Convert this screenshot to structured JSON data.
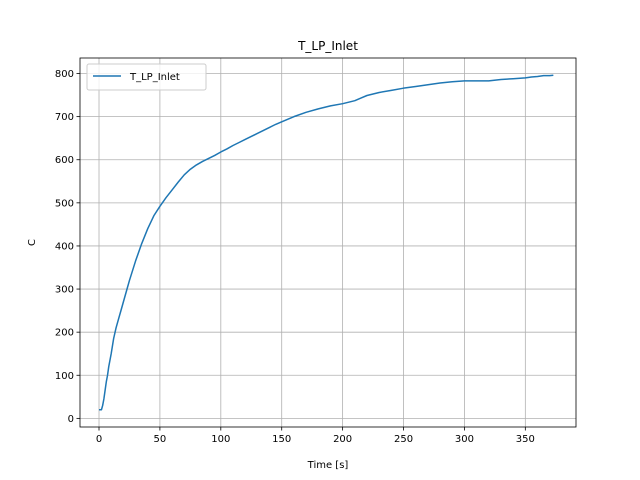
{
  "chart_data": {
    "type": "line",
    "title": "T_LP_Inlet",
    "xlabel": "Time [s]",
    "ylabel": "C",
    "xlim": [
      -15.6,
      391.6
    ],
    "ylim": [
      -20,
      836
    ],
    "xticks": [
      0,
      50,
      100,
      150,
      200,
      250,
      300,
      350
    ],
    "yticks": [
      0,
      100,
      200,
      300,
      400,
      500,
      600,
      700,
      800
    ],
    "grid": true,
    "legend_position": "upper left",
    "series": [
      {
        "name": "T_LP_Inlet",
        "color": "#1f77b4",
        "x": [
          0,
          2,
          3,
          4,
          5,
          6,
          7,
          8,
          10,
          12,
          14,
          16,
          18,
          20,
          25,
          30,
          35,
          40,
          45,
          50,
          55,
          60,
          65,
          70,
          75,
          80,
          85,
          90,
          95,
          100,
          105,
          110,
          115,
          120,
          125,
          130,
          135,
          140,
          145,
          150,
          160,
          170,
          180,
          190,
          200,
          210,
          215,
          220,
          230,
          240,
          250,
          260,
          270,
          280,
          290,
          300,
          310,
          320,
          330,
          340,
          350,
          355,
          360,
          365,
          370,
          373
        ],
        "y": [
          20,
          20,
          30,
          45,
          65,
          85,
          100,
          120,
          150,
          185,
          210,
          230,
          250,
          270,
          320,
          365,
          405,
          440,
          470,
          492,
          512,
          530,
          548,
          565,
          578,
          588,
          596,
          603,
          610,
          618,
          625,
          633,
          640,
          647,
          654,
          661,
          668,
          675,
          682,
          688,
          700,
          710,
          718,
          725,
          730,
          737,
          743,
          749,
          756,
          761,
          766,
          770,
          774,
          778,
          781,
          783,
          783,
          783,
          786,
          788,
          790,
          792,
          793,
          795,
          795,
          796
        ]
      }
    ]
  }
}
